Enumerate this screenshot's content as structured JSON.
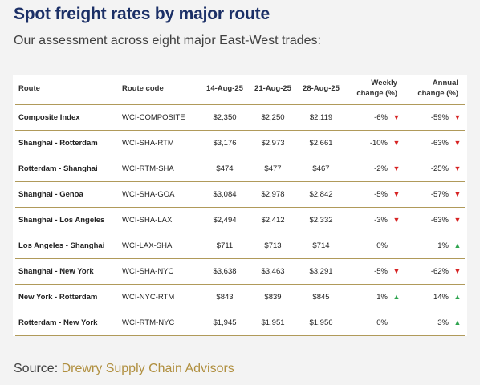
{
  "title": "Spot freight rates by major route",
  "subtitle": "Our assessment across eight major East-West trades:",
  "table": {
    "headers": {
      "route": "Route",
      "code": "Route code",
      "d1": "14-Aug-25",
      "d2": "21-Aug-25",
      "d3": "28-Aug-25",
      "weekly_line1": "Weekly",
      "weekly_line2": "change (%)",
      "annual_line1": "Annual",
      "annual_line2": "change (%)"
    },
    "rows": [
      {
        "route": "Composite Index",
        "code": "WCI-COMPOSITE",
        "d1": "$2,350",
        "d2": "$2,250",
        "d3": "$2,119",
        "weekly": "-6%",
        "weekly_dir": "down",
        "annual": "-59%",
        "annual_dir": "down"
      },
      {
        "route": "Shanghai - Rotterdam",
        "code": "WCI-SHA-RTM",
        "d1": "$3,176",
        "d2": "$2,973",
        "d3": "$2,661",
        "weekly": "-10%",
        "weekly_dir": "down",
        "annual": "-63%",
        "annual_dir": "down"
      },
      {
        "route": "Rotterdam - Shanghai",
        "code": "WCI-RTM-SHA",
        "d1": "$474",
        "d2": "$477",
        "d3": "$467",
        "weekly": "-2%",
        "weekly_dir": "down",
        "annual": "-25%",
        "annual_dir": "down"
      },
      {
        "route": "Shanghai - Genoa",
        "code": "WCI-SHA-GOA",
        "d1": "$3,084",
        "d2": "$2,978",
        "d3": "$2,842",
        "weekly": "-5%",
        "weekly_dir": "down",
        "annual": "-57%",
        "annual_dir": "down"
      },
      {
        "route": "Shanghai - Los Angeles",
        "code": "WCI-SHA-LAX",
        "d1": "$2,494",
        "d2": "$2,412",
        "d3": "$2,332",
        "weekly": "-3%",
        "weekly_dir": "down",
        "annual": "-63%",
        "annual_dir": "down"
      },
      {
        "route": "Los Angeles - Shanghai",
        "code": "WCI-LAX-SHA",
        "d1": "$711",
        "d2": "$713",
        "d3": "$714",
        "weekly": "0%",
        "weekly_dir": "none",
        "annual": "1%",
        "annual_dir": "up"
      },
      {
        "route": "Shanghai - New York",
        "code": "WCI-SHA-NYC",
        "d1": "$3,638",
        "d2": "$3,463",
        "d3": "$3,291",
        "weekly": "-5%",
        "weekly_dir": "down",
        "annual": "-62%",
        "annual_dir": "down"
      },
      {
        "route": "New York - Rotterdam",
        "code": "WCI-NYC-RTM",
        "d1": "$843",
        "d2": "$839",
        "d3": "$845",
        "weekly": "1%",
        "weekly_dir": "up",
        "annual": "14%",
        "annual_dir": "up"
      },
      {
        "route": "Rotterdam - New York",
        "code": "WCI-RTM-NYC",
        "d1": "$1,945",
        "d2": "$1,951",
        "d3": "$1,956",
        "weekly": "0%",
        "weekly_dir": "none",
        "annual": "3%",
        "annual_dir": "up"
      }
    ]
  },
  "colors": {
    "up": "#2ea44f",
    "down": "#d62222",
    "title": "#1b2f66",
    "rule": "#b09a5a",
    "link": "#b08f3f"
  },
  "source": {
    "prefix": "Source:",
    "link_text": "Drewry Supply Chain Advisors"
  }
}
